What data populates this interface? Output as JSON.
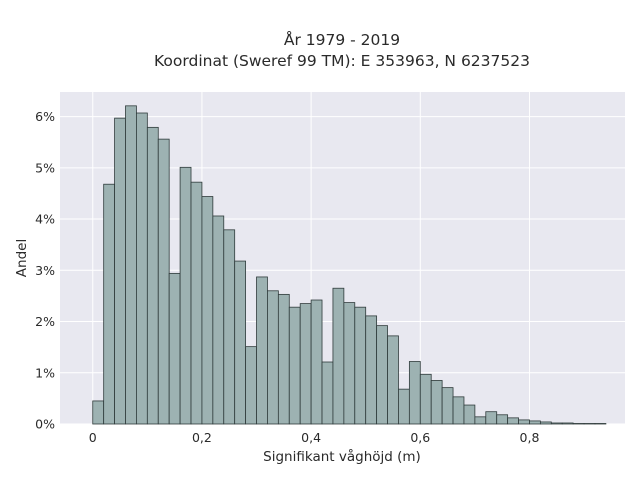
{
  "chart_data": {
    "type": "bar",
    "title_line1": "År 1979 - 2019",
    "title_line2": "Koordinat (Sweref 99 TM): E 353963, N 6237523",
    "xlabel": "Signifikant våghöjd (m)",
    "ylabel": "Andel",
    "xlim": [
      -0.06,
      0.975
    ],
    "ylim": [
      0,
      0.0648
    ],
    "x_ticks": [
      0,
      0.2,
      0.4,
      0.6,
      0.8
    ],
    "x_tick_labels": [
      "0",
      "0,2",
      "0,4",
      "0,6",
      "0,8"
    ],
    "y_ticks": [
      0,
      0.01,
      0.02,
      0.03,
      0.04,
      0.05,
      0.06
    ],
    "y_tick_labels": [
      "0%",
      "1%",
      "2%",
      "3%",
      "4%",
      "5%",
      "6%"
    ],
    "grid": true,
    "bin_width": 0.02,
    "bin_start": 0.0,
    "values": [
      0.0045,
      0.0468,
      0.0597,
      0.0621,
      0.0607,
      0.0579,
      0.0556,
      0.0294,
      0.0501,
      0.0472,
      0.0444,
      0.0406,
      0.0379,
      0.0318,
      0.0151,
      0.0287,
      0.026,
      0.0253,
      0.0228,
      0.0235,
      0.0242,
      0.0121,
      0.0265,
      0.0237,
      0.0228,
      0.0211,
      0.0192,
      0.0172,
      0.0068,
      0.0122,
      0.0097,
      0.0085,
      0.0071,
      0.0053,
      0.0037,
      0.0014,
      0.0024,
      0.0018,
      0.0012,
      0.0008,
      0.0006,
      0.0004,
      0.0002,
      0.0002,
      0.0001,
      0.0001,
      0.0001
    ],
    "colors": {
      "bar_fill": "#9db2b2",
      "bar_stroke": "#2f3b3b",
      "plot_bg": "#e8e8f0",
      "grid": "#ffffff"
    }
  }
}
